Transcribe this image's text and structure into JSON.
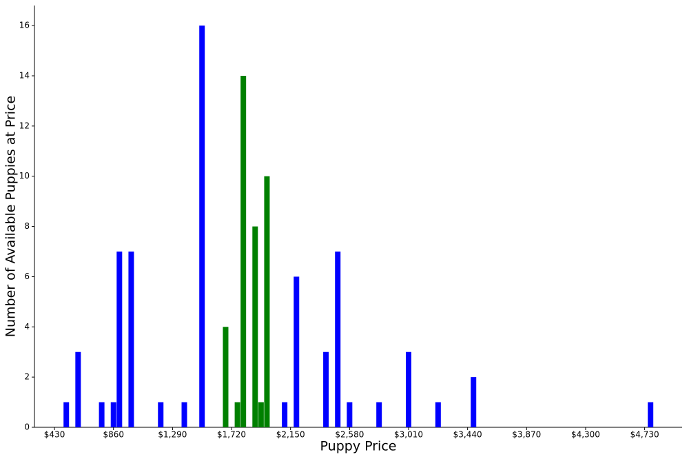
{
  "chart_data": {
    "type": "bar",
    "x_label": "Puppy Price",
    "y_label": "Number of Available Puppies at Price",
    "series": [
      {
        "color": "#0000ff",
        "x": [
          516,
          602,
          774,
          860,
          903,
          989,
          1204,
          1376,
          1505,
          2107,
          2193,
          2408,
          2494,
          2580,
          2795,
          3010,
          3225,
          3483,
          4773
        ],
        "values": [
          1,
          3,
          1,
          1,
          7,
          7,
          1,
          1,
          16,
          1,
          6,
          3,
          7,
          1,
          1,
          3,
          1,
          2,
          1
        ]
      },
      {
        "color": "#008000",
        "x": [
          1677,
          1763,
          1806,
          1892,
          1935,
          1978
        ],
        "values": [
          4,
          1,
          14,
          8,
          1,
          10
        ]
      }
    ],
    "xlim": [
      284,
      5003
    ],
    "ylim": [
      0,
      16.8
    ],
    "xticks": [
      {
        "value": 430,
        "label": "$430"
      },
      {
        "value": 860,
        "label": "$860"
      },
      {
        "value": 1290,
        "label": "$1,290"
      },
      {
        "value": 1720,
        "label": "$1,720"
      },
      {
        "value": 2150,
        "label": "$2,150"
      },
      {
        "value": 2580,
        "label": "$2,580"
      },
      {
        "value": 3010,
        "label": "$3,010"
      },
      {
        "value": 3440,
        "label": "$3,440"
      },
      {
        "value": 3870,
        "label": "$3,870"
      },
      {
        "value": 4300,
        "label": "$4,300"
      },
      {
        "value": 4730,
        "label": "$4,730"
      }
    ],
    "yticks": [
      0,
      2,
      4,
      6,
      8,
      10,
      12,
      14,
      16
    ],
    "grid": false
  }
}
